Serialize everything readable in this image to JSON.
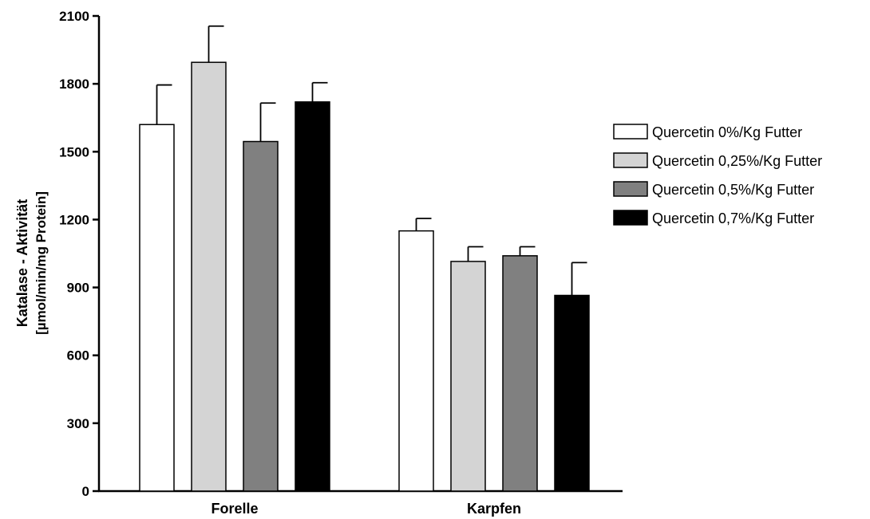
{
  "chart_data": {
    "type": "bar",
    "categories": [
      "Forelle",
      "Karpfen"
    ],
    "ylabel_line1": "Katalase - Aktivität",
    "ylabel_line2": "[µmol/min/mg Protein]",
    "xlabel": "",
    "ylim": [
      0,
      2100
    ],
    "yticks": [
      0,
      300,
      600,
      900,
      1200,
      1500,
      1800,
      2100
    ],
    "grid": false,
    "legend_position": "right",
    "series": [
      {
        "name": "Quercetin 0%/Kg Futter",
        "color": "#ffffff",
        "values": [
          1620,
          1150
        ],
        "errors": [
          175,
          55
        ]
      },
      {
        "name": "Quercetin 0,25%/Kg Futter",
        "color": "#d4d4d4",
        "values": [
          1895,
          1015
        ],
        "errors": [
          160,
          65
        ]
      },
      {
        "name": "Quercetin 0,5%/Kg Futter",
        "color": "#808080",
        "values": [
          1545,
          1040
        ],
        "errors": [
          170,
          40
        ]
      },
      {
        "name": "Quercetin 0,7%/Kg Futter",
        "color": "#000000",
        "values": [
          1720,
          865
        ],
        "errors": [
          85,
          145
        ]
      }
    ]
  }
}
